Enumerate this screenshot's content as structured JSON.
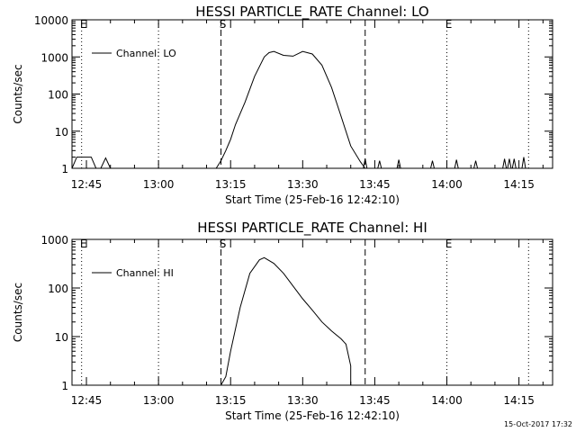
{
  "footer": {
    "timestamp": "15-Oct-2017 17:32"
  },
  "chart_data": [
    {
      "type": "line",
      "title": "HESSI PARTICLE_RATE Channel: LO",
      "xlabel": "Start Time (25-Feb-16 12:42:10)",
      "ylabel": "Counts/sec",
      "yscale": "log",
      "xlim": [
        "12:42",
        "14:22"
      ],
      "ylim": [
        1,
        10000
      ],
      "x_ticks": [
        "12:45",
        "13:00",
        "13:15",
        "13:30",
        "13:45",
        "14:00",
        "14:15"
      ],
      "y_ticks": [
        {
          "value": 1,
          "label": "1"
        },
        {
          "value": 10,
          "label": "10"
        },
        {
          "value": 100,
          "label": "100"
        },
        {
          "value": 1000,
          "label": "1000"
        },
        {
          "value": 10000,
          "label": "10000"
        }
      ],
      "grid": false,
      "legend_position": "top-left",
      "markers": [
        {
          "label": "E",
          "time": "12:44",
          "style": "dotted"
        },
        {
          "label": "",
          "time": "13:00",
          "style": "dotted"
        },
        {
          "label": "S",
          "time": "13:13",
          "style": "dashed"
        },
        {
          "label": "",
          "time": "13:43",
          "style": "dashed"
        },
        {
          "label": "E",
          "time": "14:00",
          "style": "dotted"
        },
        {
          "label": "",
          "time": "14:17",
          "style": "dotted"
        }
      ],
      "series": [
        {
          "name": "Channel: LO",
          "x": [
            "12:42",
            "12:43",
            "12:46",
            "12:47",
            "12:48",
            "12:49",
            "12:50",
            "12:51",
            "13:12",
            "13:13",
            "13:14",
            "13:15",
            "13:16",
            "13:18",
            "13:20",
            "13:22",
            "13:23",
            "13:24",
            "13:26",
            "13:28",
            "13:30",
            "13:32",
            "13:34",
            "13:36",
            "13:38",
            "13:40",
            "13:42",
            "13:43"
          ],
          "y": [
            1,
            2,
            2,
            1,
            1,
            1.9,
            1,
            1,
            1,
            1.6,
            3,
            6,
            15,
            60,
            300,
            1000,
            1300,
            1400,
            1100,
            1050,
            1400,
            1200,
            600,
            150,
            25,
            4,
            1.5,
            1
          ]
        }
      ],
      "spikes": [
        {
          "time": "13:43",
          "value": 1.8
        },
        {
          "time": "13:46",
          "value": 1.6
        },
        {
          "time": "13:50",
          "value": 1.7
        },
        {
          "time": "13:57",
          "value": 1.6
        },
        {
          "time": "14:02",
          "value": 1.7
        },
        {
          "time": "14:06",
          "value": 1.6
        },
        {
          "time": "14:12",
          "value": 1.8
        },
        {
          "time": "14:13",
          "value": 1.8
        },
        {
          "time": "14:14",
          "value": 1.8
        },
        {
          "time": "14:16",
          "value": 2
        }
      ]
    },
    {
      "type": "line",
      "title": "HESSI PARTICLE_RATE Channel: HI",
      "xlabel": "Start Time (25-Feb-16 12:42:10)",
      "ylabel": "Counts/sec",
      "yscale": "log",
      "xlim": [
        "12:42",
        "14:22"
      ],
      "ylim": [
        1,
        1000
      ],
      "x_ticks": [
        "12:45",
        "13:00",
        "13:15",
        "13:30",
        "13:45",
        "14:00",
        "14:15"
      ],
      "y_ticks": [
        {
          "value": 1,
          "label": "1"
        },
        {
          "value": 10,
          "label": "10"
        },
        {
          "value": 100,
          "label": "100"
        },
        {
          "value": 1000,
          "label": "1000"
        }
      ],
      "grid": false,
      "legend_position": "top-left",
      "markers": [
        {
          "label": "E",
          "time": "12:44",
          "style": "dotted"
        },
        {
          "label": "",
          "time": "13:00",
          "style": "dotted"
        },
        {
          "label": "S",
          "time": "13:13",
          "style": "dashed"
        },
        {
          "label": "",
          "time": "13:43",
          "style": "dashed"
        },
        {
          "label": "E",
          "time": "14:00",
          "style": "dotted"
        },
        {
          "label": "",
          "time": "14:17",
          "style": "dotted"
        }
      ],
      "series": [
        {
          "name": "Channel: HI",
          "x": [
            "13:13",
            "13:14",
            "13:15",
            "13:17",
            "13:19",
            "13:21",
            "13:22",
            "13:24",
            "13:26",
            "13:28",
            "13:30",
            "13:32",
            "13:34",
            "13:36",
            "13:38",
            "13:39",
            "13:40",
            "13:40"
          ],
          "y": [
            1,
            1.5,
            5,
            40,
            200,
            380,
            420,
            320,
            200,
            110,
            60,
            35,
            20,
            13,
            9,
            7,
            2.5,
            1
          ]
        }
      ]
    }
  ]
}
